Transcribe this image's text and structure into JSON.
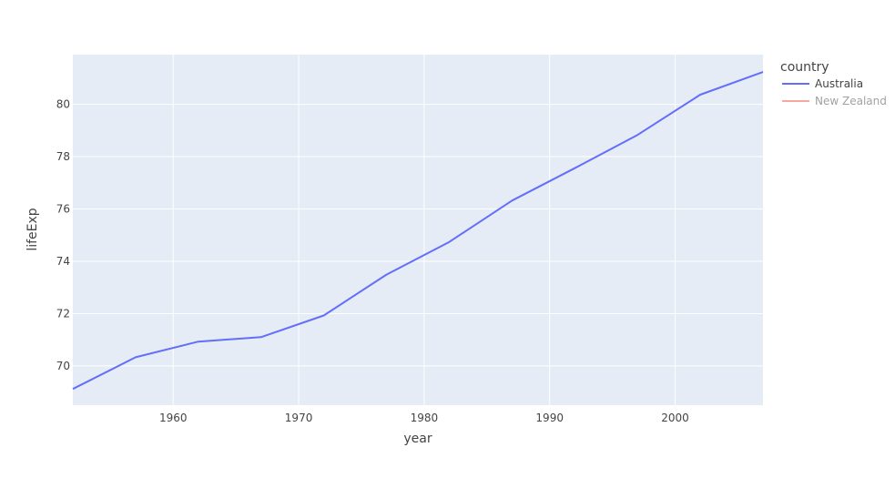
{
  "chart_data": {
    "type": "line",
    "xlabel": "year",
    "ylabel": "lifeExp",
    "xlim": [
      1952,
      2007
    ],
    "ylim": [
      68.5,
      81.9
    ],
    "x_ticks": [
      1960,
      1970,
      1980,
      1990,
      2000
    ],
    "y_ticks": [
      70,
      72,
      74,
      76,
      78,
      80
    ],
    "grid": true,
    "legend_placement": "right",
    "legend_title": "country",
    "colors": {
      "plot_bg": "#E5ECF6",
      "grid": "#ffffff"
    },
    "series": [
      {
        "name": "Australia",
        "color": "#636EFA",
        "visible": true,
        "x": [
          1952,
          1957,
          1962,
          1967,
          1972,
          1977,
          1982,
          1987,
          1992,
          1997,
          2002,
          2007
        ],
        "y": [
          69.12,
          70.33,
          70.93,
          71.1,
          71.93,
          73.49,
          74.74,
          76.32,
          77.56,
          78.83,
          80.37,
          81.235
        ]
      },
      {
        "name": "New Zealand",
        "color": "#EF553B",
        "visible": false,
        "x": [],
        "y": []
      }
    ]
  }
}
